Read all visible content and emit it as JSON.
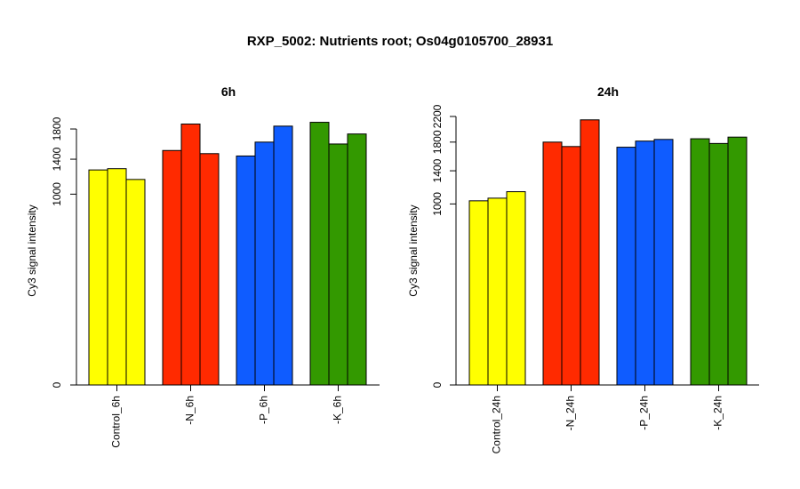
{
  "title": "RXP_5002: Nutrients root; Os04g0105700_28931",
  "chart_data": [
    {
      "type": "bar",
      "title": "6h",
      "ylabel": "Cy3 signal intensity",
      "ylim": [
        0,
        1980
      ],
      "y_scale": "sqrt",
      "yticks": [
        0,
        1000,
        1400,
        1800
      ],
      "categories": [
        "Control_6h",
        "-N_6h",
        "-P_6h",
        "-K_6h"
      ],
      "groups": [
        {
          "label": "Control_6h",
          "color": "#ffff00",
          "values": [
            1270,
            1285,
            1160
          ]
        },
        {
          "label": "-N_6h",
          "color": "#ff2a00",
          "values": [
            1510,
            1870,
            1470
          ]
        },
        {
          "label": "-P_6h",
          "color": "#0f5cff",
          "values": [
            1440,
            1620,
            1840
          ]
        },
        {
          "label": "-K_6h",
          "color": "#339900",
          "values": [
            1895,
            1595,
            1730
          ]
        }
      ]
    },
    {
      "type": "bar",
      "title": "24h",
      "ylabel": "Cy3 signal intensity",
      "ylim": [
        0,
        2200
      ],
      "y_scale": "sqrt",
      "yticks": [
        0,
        1000,
        1400,
        1800,
        2200
      ],
      "categories": [
        "Control_24h",
        "-N_24h",
        "-P_24h",
        "-K_24h"
      ],
      "groups": [
        {
          "label": "Control_24h",
          "color": "#ffff00",
          "values": [
            1035,
            1065,
            1140
          ]
        },
        {
          "label": "-N_24h",
          "color": "#ff2a00",
          "values": [
            1800,
            1735,
            2145
          ]
        },
        {
          "label": "-P_24h",
          "color": "#0f5cff",
          "values": [
            1725,
            1815,
            1840
          ]
        },
        {
          "label": "-K_24h",
          "color": "#339900",
          "values": [
            1850,
            1780,
            1875
          ]
        }
      ]
    }
  ]
}
